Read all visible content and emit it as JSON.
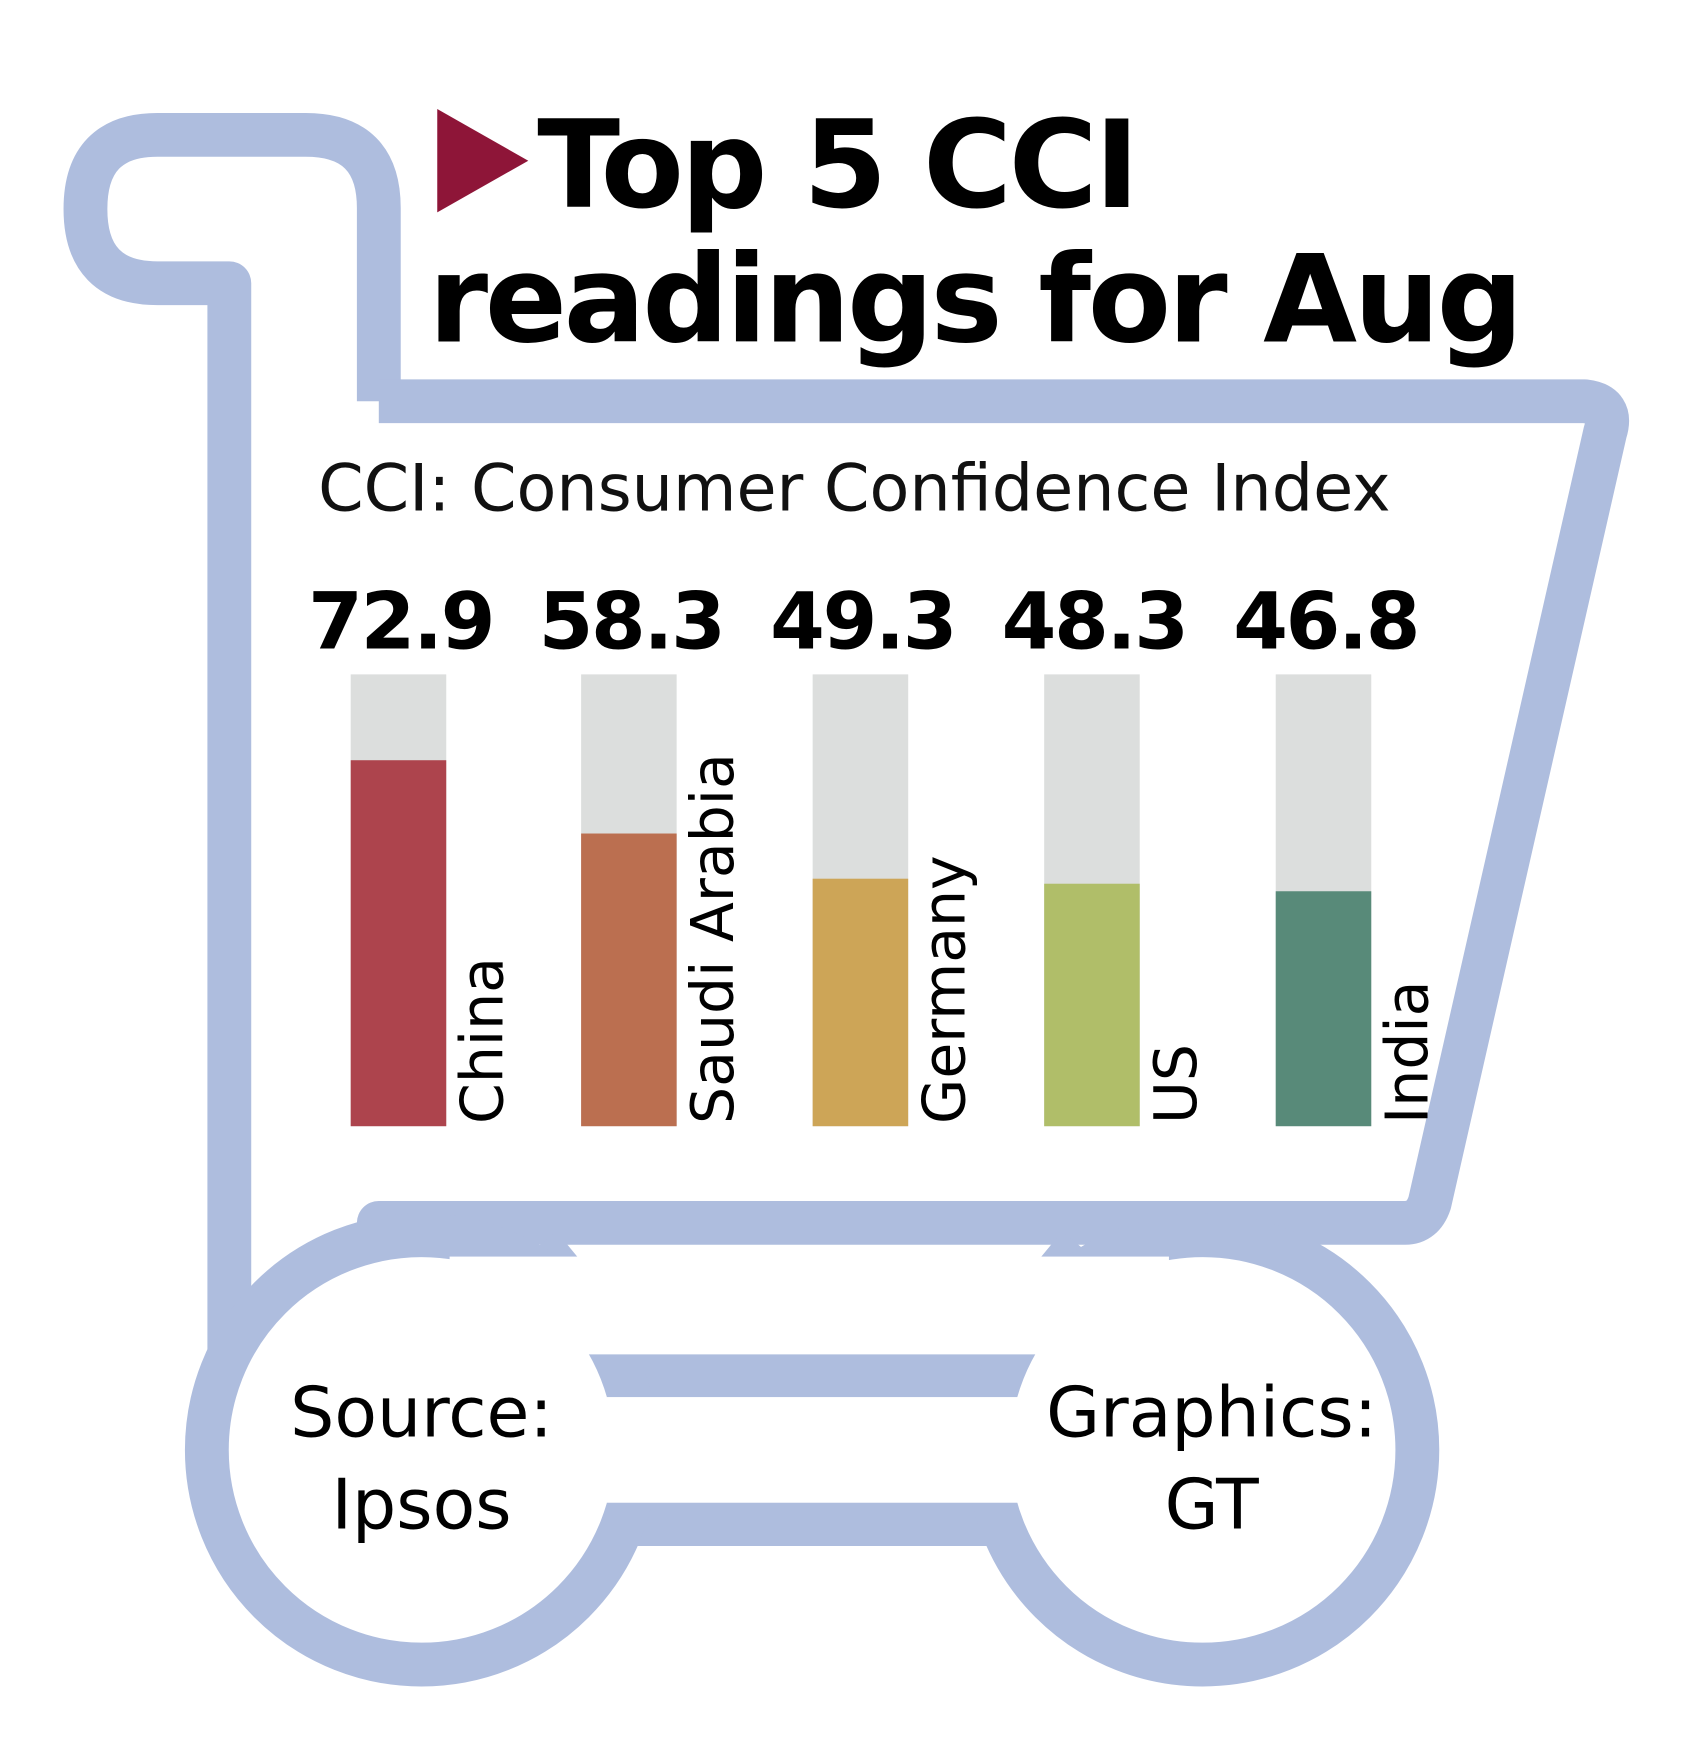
{
  "chart_data": {
    "type": "bar",
    "title": "Top 5 CCI readings for Aug",
    "title_lines": [
      "Top 5 CCI",
      "readings for Aug"
    ],
    "subtitle": "CCI: Consumer Confidence Index",
    "categories": [
      "China",
      "Saudi Arabia",
      "Germany",
      "US",
      "India"
    ],
    "values": [
      72.9,
      58.3,
      49.3,
      48.3,
      46.8
    ],
    "value_labels": [
      "72.9",
      "58.3",
      "49.3",
      "48.3",
      "46.8"
    ],
    "ylim": [
      0,
      90
    ],
    "grid": false,
    "legend": "none",
    "colors": [
      "#ad444d",
      "#bb6f50",
      "#cda557",
      "#b0be69",
      "#588a79"
    ],
    "track_color": "#dcdedd",
    "source": [
      "Source:",
      "Ipsos"
    ],
    "credit": [
      "Graphics:",
      "GT"
    ]
  },
  "decor": {
    "cart_color": "#aebdde",
    "marker_color": "#8e1538",
    "marker_icon": "triangle-right-icon",
    "background_icon": "shopping-cart-icon"
  }
}
